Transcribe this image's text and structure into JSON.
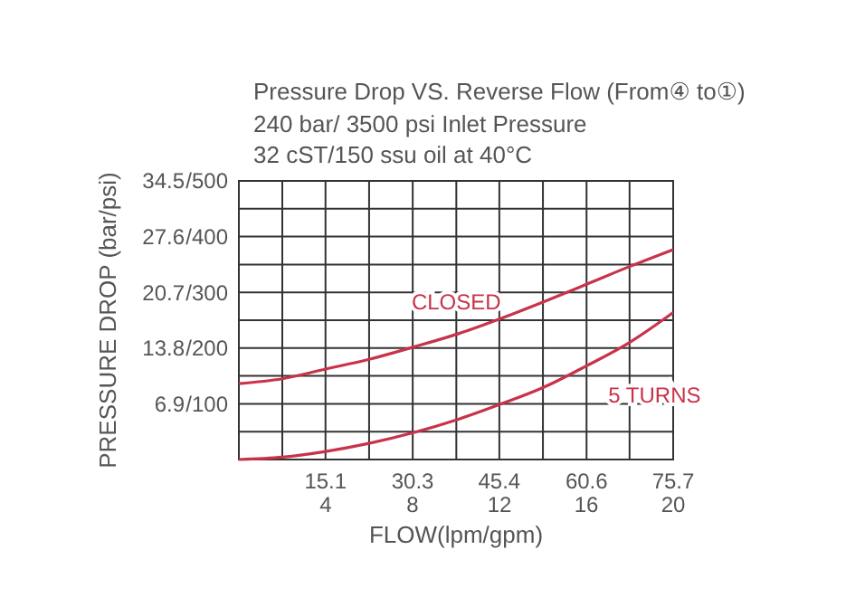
{
  "chart_data": {
    "type": "line",
    "title": "Pressure Drop VS. Reverse Flow (From④ to①)",
    "subtitle": "240 bar/ 3500 psi Inlet Pressure\n32 cST/150 ssu oil at 40°C",
    "xlabel": "FLOW(lpm/gpm)",
    "ylabel": "PRESSURE DROP (bar/psi)",
    "x": [
      0,
      7.57,
      15.14,
      22.7,
      30.3,
      37.9,
      45.4,
      53,
      60.6,
      68.1,
      75.7
    ],
    "series": [
      {
        "name": "CLOSED",
        "color": "#c8334a",
        "values": [
          9.4,
          10,
          11.2,
          12.4,
          13.9,
          15.5,
          17.4,
          19.5,
          21.7,
          23.9,
          26.0
        ]
      },
      {
        "name": "5 TURNS",
        "color": "#c8334a",
        "values": [
          0,
          0.3,
          1,
          2,
          3.3,
          4.9,
          6.8,
          8.9,
          11.6,
          14.5,
          18.2
        ]
      }
    ],
    "xlim": [
      0,
      75.7
    ],
    "ylim": [
      0,
      34.5
    ],
    "x2lim": [
      0,
      20
    ],
    "y2lim": [
      0,
      500
    ],
    "xticks": [
      {
        "value": 7.57,
        "label": null
      },
      15.1,
      {
        "value": 22.7,
        "label": null
      },
      30.3,
      {
        "value": 37.9,
        "label": null
      },
      45.4,
      {
        "value": 53,
        "label": null
      },
      60.6,
      {
        "value": 68.1,
        "label": null
      },
      75.7
    ],
    "x2ticks": [
      4,
      8,
      12,
      16,
      20
    ],
    "yticks": [
      {
        "value": 3.45,
        "label": null
      },
      6.9,
      {
        "value": 10.35,
        "label": null
      },
      13.8,
      {
        "value": 17.25,
        "label": null
      },
      20.7,
      {
        "value": 24.15,
        "label": null
      },
      27.6,
      {
        "value": 31.05,
        "label": null
      },
      34.5
    ],
    "y2ticks": [
      {
        "value": 100,
        "label": "/100"
      },
      {
        "value": 200,
        "label": "/200"
      },
      {
        "value": 300,
        "label": "/300"
      },
      {
        "value": 400,
        "label": "/400"
      },
      {
        "value": 500,
        "label": "/500"
      }
    ],
    "grid": true,
    "marker": "none",
    "line_style": "solid"
  }
}
